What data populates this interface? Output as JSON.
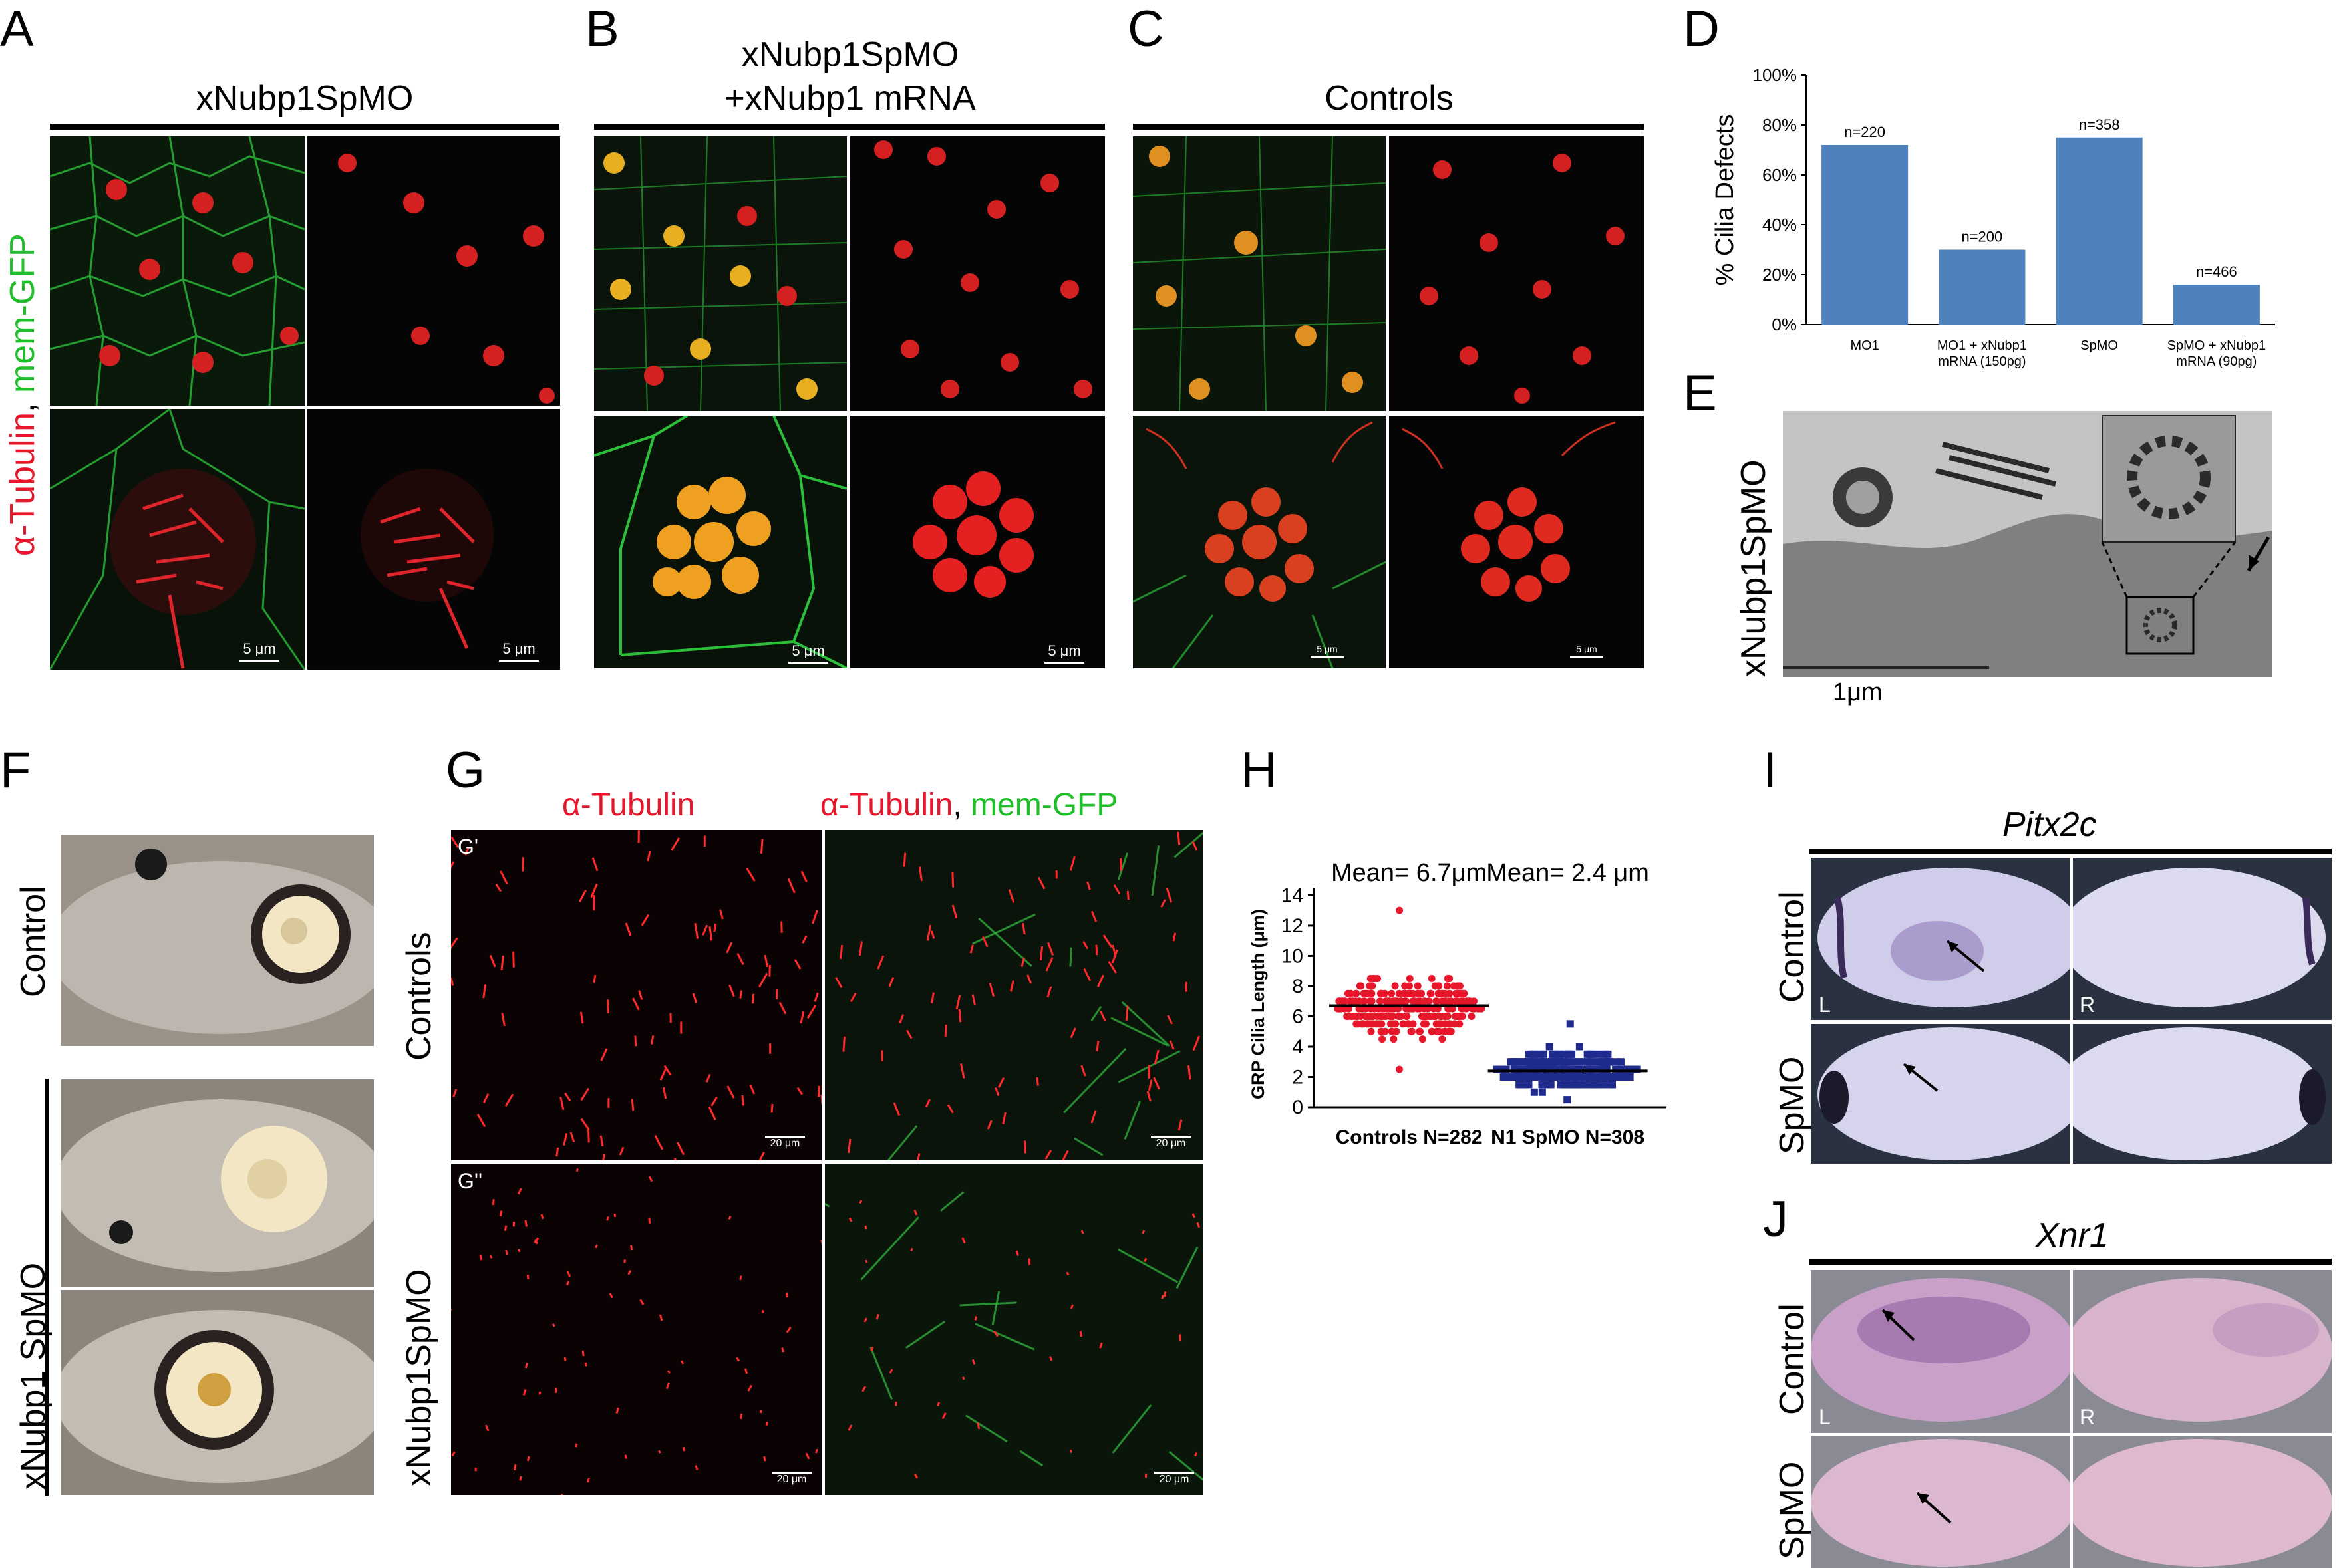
{
  "panels": {
    "A": {
      "letter": "A",
      "title": "xNubp1SpMO",
      "side_label_red": "α-Tubulin",
      "side_label_comma": ", ",
      "side_label_green": "mem-GFP",
      "scales": [
        "5 μm",
        "5 μm"
      ]
    },
    "B": {
      "letter": "B",
      "title_line1": "xNubp1SpMO",
      "title_line2": "+xNubp1 mRNA",
      "scales": [
        "5 μm",
        "5 μm"
      ]
    },
    "C": {
      "letter": "C",
      "title": "Controls",
      "scales": [
        "5 μm",
        "5 μm"
      ]
    },
    "D": {
      "letter": "D"
    },
    "E": {
      "letter": "E",
      "side_label": "xNubp1SpMO",
      "scale": "1μm"
    },
    "F": {
      "letter": "F",
      "label_control": "Control",
      "label_morphant": "xNubp1 SpMO"
    },
    "G": {
      "letter": "G",
      "col1_red": "α-Tubulin",
      "col2_red": "α-Tubulin",
      "col2_comma": ", ",
      "col2_green": "mem-GFP",
      "row1": "Controls",
      "row2": "xNubp1SpMO",
      "sub1": "G'",
      "sub2": "G''",
      "scales": [
        "20 μm",
        "20 μm",
        "20 μm",
        "20 μm"
      ]
    },
    "H": {
      "letter": "H"
    },
    "I": {
      "letter": "I",
      "gene": "Pitx2c",
      "row1": "Control",
      "row2": "SpMO",
      "left": "L",
      "right": "R"
    },
    "J": {
      "letter": "J",
      "gene": "Xnr1",
      "row1": "Control",
      "row2": "SpMO",
      "left": "L",
      "right": "R"
    }
  },
  "chart_data": [
    {
      "panel": "D",
      "type": "bar",
      "categories": [
        [
          "MO1"
        ],
        [
          "MO1 + xNubp1",
          "mRNA (150pg)"
        ],
        [
          "SpMO"
        ],
        [
          "SpMO + xNubp1",
          "mRNA (90pg)"
        ]
      ],
      "values": [
        72,
        30,
        75,
        16
      ],
      "bar_labels": [
        "n=220",
        "n=200",
        "n=358",
        "n=466"
      ],
      "ylabel": "% Cilia Defects",
      "yticks": [
        "0%",
        "20%",
        "40%",
        "60%",
        "80%",
        "100%"
      ],
      "ylim": [
        0,
        100
      ],
      "color": "#4f81bd"
    },
    {
      "panel": "H",
      "type": "scatter",
      "ylabel": "GRP Cilia Length (μm)",
      "yticks": [
        "0",
        "2",
        "4",
        "6",
        "8",
        "10",
        "12",
        "14"
      ],
      "ylim": [
        0,
        14.5
      ],
      "groups": [
        {
          "label": "Controls N=282",
          "annotation": "Mean= 6.7μm",
          "mean": 6.7,
          "n": 282,
          "min": 2.7,
          "max": 13.0,
          "sd": 1.6,
          "color": "#e8162b",
          "marker": "circle"
        },
        {
          "label": "N1 SpMO N=308",
          "annotation": "Mean= 2.4 μm",
          "mean": 2.4,
          "n": 308,
          "min": 0.5,
          "max": 5.7,
          "sd": 1.0,
          "color": "#1f2b8c",
          "marker": "square"
        }
      ]
    }
  ]
}
